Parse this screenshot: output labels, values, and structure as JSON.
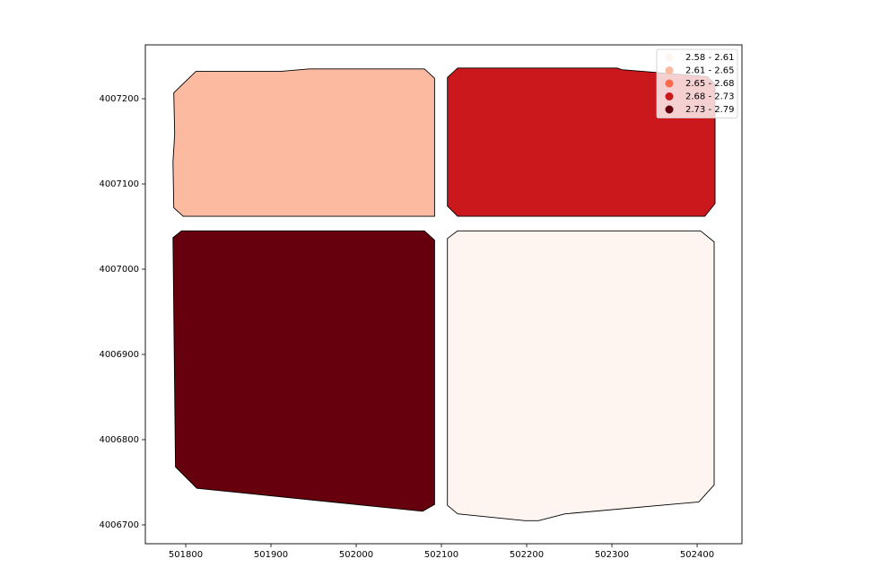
{
  "chart_data": {
    "type": "choropleth",
    "xlim": [
      501752.6,
      502452.6
    ],
    "ylim": [
      4006677.9,
      4007263.2
    ],
    "xticks": [
      501800,
      501900,
      502000,
      502100,
      502200,
      502300,
      502400
    ],
    "yticks": [
      4006700,
      4006800,
      4006900,
      4007000,
      4007100,
      4007200
    ],
    "legend_position": "upper right",
    "classes": [
      {
        "label": "2.58 - 2.61",
        "color": "#fff5f0"
      },
      {
        "label": "2.61 - 2.65",
        "color": "#fcbba1"
      },
      {
        "label": "2.65 - 2.68",
        "color": "#fb6a4a"
      },
      {
        "label": "2.68 - 2.73",
        "color": "#cb181d"
      },
      {
        "label": "2.73 - 2.79",
        "color": "#67000d"
      }
    ],
    "features": [
      {
        "class": 1,
        "x": [
          501812,
          501911,
          501945,
          502080,
          502092,
          502092,
          502082,
          501797,
          501786,
          501785,
          501787,
          501786
        ],
        "y": [
          4007232,
          4007232,
          4007235,
          4007235,
          4007224,
          4007062,
          4007062,
          4007062,
          4007072,
          4007126,
          4007158,
          4007207
        ]
      },
      {
        "class": 3,
        "x": [
          502119,
          502306,
          502312,
          502412,
          502421,
          502421,
          502409,
          502119,
          502107,
          502107
        ],
        "y": [
          4007236,
          4007236,
          4007234,
          4007226,
          4007217,
          4007077,
          4007062,
          4007062,
          4007074,
          4007225
        ]
      },
      {
        "class": 4,
        "x": [
          501795,
          502080,
          502092,
          502092,
          502078,
          501813,
          501788,
          501785
        ],
        "y": [
          4007045,
          4007045,
          4007034,
          4006724,
          4006716,
          4006743,
          4006768,
          4007037
        ]
      },
      {
        "class": 0,
        "x": [
          502119,
          502404,
          502420,
          502420,
          502402,
          502245,
          502214,
          502198,
          502119,
          502107,
          502107
        ],
        "y": [
          4007045,
          4007045,
          4007032,
          4006747,
          4006727,
          4006713,
          4006705,
          4006705,
          4006713,
          4006723,
          4007036
        ]
      }
    ]
  }
}
